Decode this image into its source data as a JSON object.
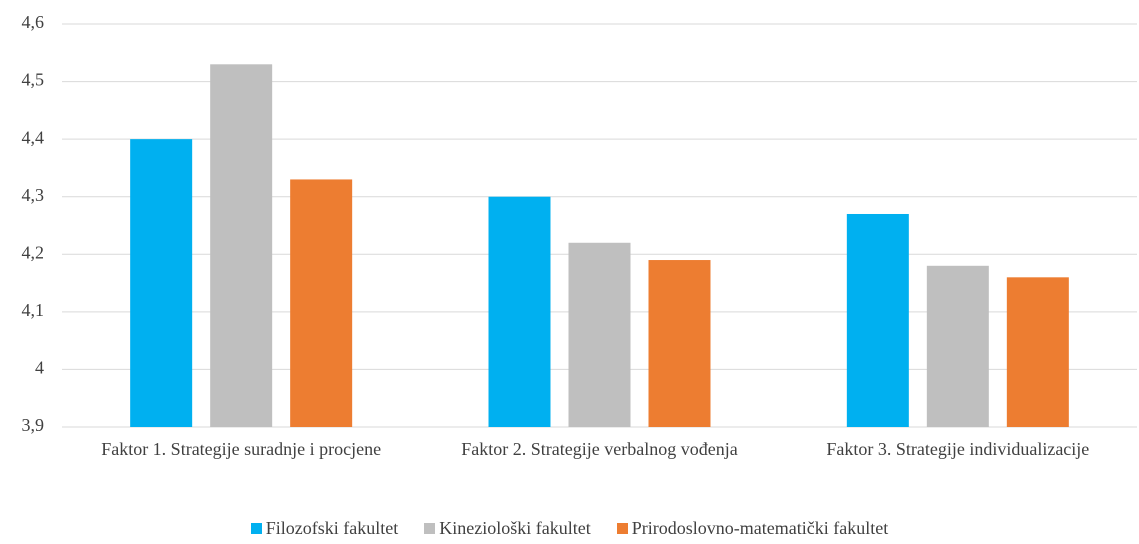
{
  "chart_data": {
    "type": "bar",
    "categories": [
      "Faktor 1. Strategije suradnje i procjene",
      "Faktor 2. Strategije verbalnog vođenja",
      "Faktor 3. Strategije individualizacije"
    ],
    "series": [
      {
        "name": "Filozofski fakultet",
        "color": "#00b0f0",
        "values": [
          4.4,
          4.3,
          4.27
        ]
      },
      {
        "name": "Kineziološki fakultet",
        "color": "#bfbfbf",
        "values": [
          4.53,
          4.22,
          4.18
        ]
      },
      {
        "name": "Prirodoslovno-matematički fakultet",
        "color": "#ed7d31",
        "values": [
          4.33,
          4.19,
          4.16
        ]
      }
    ],
    "ylim": [
      3.9,
      4.6
    ],
    "yticks": [
      {
        "value": 3.9,
        "label": "3,9"
      },
      4,
      {
        "value": 4.1,
        "label": "4,1"
      },
      {
        "value": 4.2,
        "label": "4,2"
      },
      {
        "value": 4.3,
        "label": "4,3"
      },
      {
        "value": 4.4,
        "label": "4,4"
      },
      {
        "value": 4.5,
        "label": "4,5"
      },
      {
        "value": 4.6,
        "label": "4,6"
      }
    ],
    "grid": true,
    "legend": "bottom"
  }
}
